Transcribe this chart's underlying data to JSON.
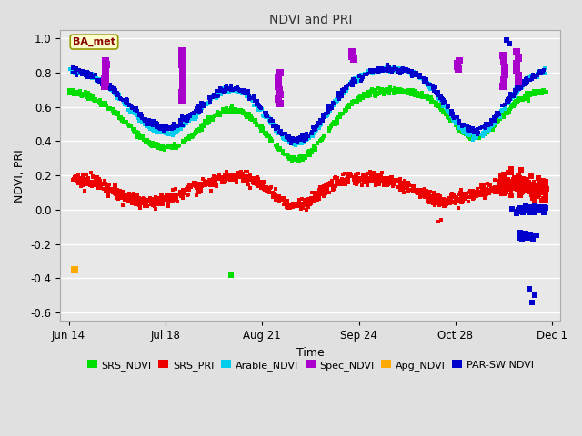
{
  "title": "NDVI and PRI",
  "xlabel": "Time",
  "ylabel": "NDVI, PRI",
  "ylim": [
    -0.65,
    1.05
  ],
  "annotation": "BA_met",
  "series": {
    "SRS_NDVI": {
      "color": "#00dd00"
    },
    "SRS_PRI": {
      "color": "#ee0000"
    },
    "Arable_NDVI": {
      "color": "#00ccee"
    },
    "Spec_NDVI": {
      "color": "#aa00cc"
    },
    "Apg_NDVI": {
      "color": "#ffaa00"
    },
    "PAR-SW NDVI": {
      "color": "#0000cc"
    }
  },
  "background_color": "#e8e8e8",
  "fig_facecolor": "#e0e0e0",
  "grid_color": "#ffffff",
  "tick_days": [
    0,
    34,
    68,
    102,
    136,
    170
  ],
  "tick_labels": [
    "Jun 14",
    "Jul 18",
    "Aug 21",
    "Sep 24",
    "Oct 28",
    "Dec 1"
  ],
  "yticks": [
    -0.6,
    -0.4,
    -0.2,
    0.0,
    0.2,
    0.4,
    0.6,
    0.8,
    1.0
  ]
}
